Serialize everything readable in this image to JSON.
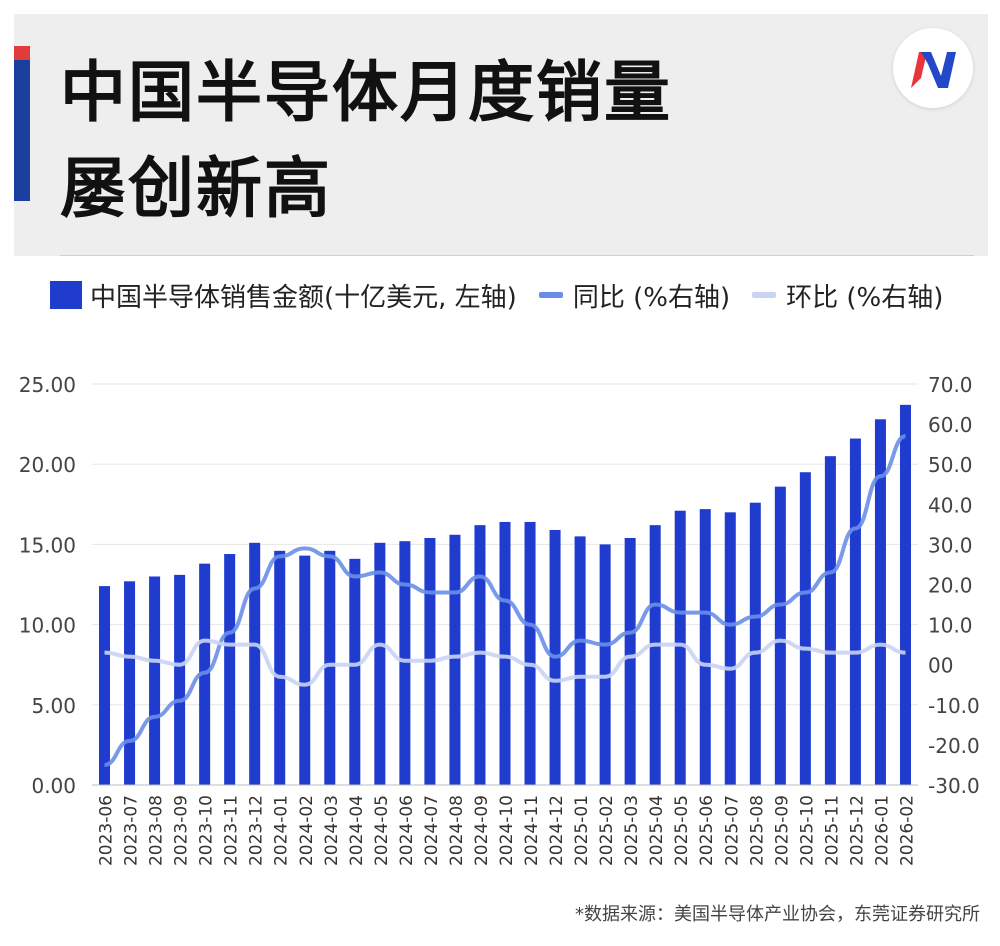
{
  "header": {
    "title_line1": "中国半导体月度销量",
    "title_line2": "屡创新高",
    "logo_text": "N",
    "colors": {
      "accent_blue": "#1a3f9e",
      "accent_red": "#e23b3b",
      "logo_red": "#e8343b",
      "logo_blue": "#2349c8"
    }
  },
  "legend": {
    "bar_label": "中国半导体销售金额(十亿美元, 左轴)",
    "yoy_label": "同比 (%右轴)",
    "mom_label": "环比 (%右轴)"
  },
  "source": "*数据来源：美国半导体产业协会，东莞证券研究所",
  "chart_data": {
    "type": "bar",
    "categories": [
      "2023-06",
      "2023-07",
      "2023-08",
      "2023-09",
      "2023-10",
      "2023-11",
      "2023-12",
      "2024-01",
      "2024-02",
      "2024-03",
      "2024-04",
      "2024-05",
      "2024-06",
      "2024-07",
      "2024-08",
      "2024-09",
      "2024-10",
      "2024-11",
      "2024-12",
      "2025-01",
      "2025-02",
      "2025-03",
      "2025-04",
      "2025-05",
      "2025-06",
      "2025-07",
      "2025-08",
      "2025-09",
      "2025-10",
      "2025-11",
      "2025-12",
      "2026-01",
      "2026-02"
    ],
    "series": [
      {
        "name": "中国半导体销售金额(十亿美元, 左轴)",
        "axis": "left",
        "kind": "bar",
        "color": "#1f3ccf",
        "values": [
          12.4,
          12.7,
          13.0,
          13.1,
          13.8,
          14.4,
          15.1,
          14.6,
          14.3,
          14.6,
          14.1,
          15.1,
          15.2,
          15.4,
          15.6,
          16.2,
          16.4,
          16.4,
          15.9,
          15.5,
          15.0,
          15.4,
          16.2,
          17.1,
          17.2,
          17.0,
          17.6,
          18.6,
          19.5,
          20.5,
          21.6,
          22.8,
          23.7
        ]
      },
      {
        "name": "同比 (%右轴)",
        "axis": "right",
        "kind": "line",
        "color": "#6a8ee8",
        "values": [
          -25,
          -19,
          -13,
          -9,
          -2,
          8,
          19,
          27,
          29,
          27,
          22,
          23,
          20,
          18,
          18,
          22,
          16,
          10,
          2,
          6,
          5,
          8,
          15,
          13,
          13,
          10,
          12,
          15,
          18,
          23,
          34,
          47,
          57
        ]
      },
      {
        "name": "环比 (%右轴)",
        "axis": "right",
        "kind": "line",
        "color": "#c9d3f4",
        "values": [
          3,
          2,
          1,
          0,
          6,
          5,
          5,
          -3,
          -5,
          0,
          0,
          5,
          1,
          1,
          2,
          3,
          2,
          0,
          -4,
          -3,
          -3,
          2,
          5,
          5,
          0,
          -1,
          3,
          6,
          4,
          3,
          3,
          5,
          3
        ]
      }
    ],
    "y_left": {
      "ylim": [
        0,
        25
      ],
      "ticks": [
        "0.00",
        "5.00",
        "10.00",
        "15.00",
        "20.00",
        "25.00"
      ]
    },
    "y_right": {
      "ylim": [
        -30,
        70
      ],
      "ticks": [
        "-30.0",
        "-20.0",
        "-10.0",
        "00",
        "10.0",
        "20.0",
        "30.0",
        "40.0",
        "50.0",
        "60.0",
        "70.0"
      ]
    },
    "grid": true,
    "legend_position": "top"
  }
}
